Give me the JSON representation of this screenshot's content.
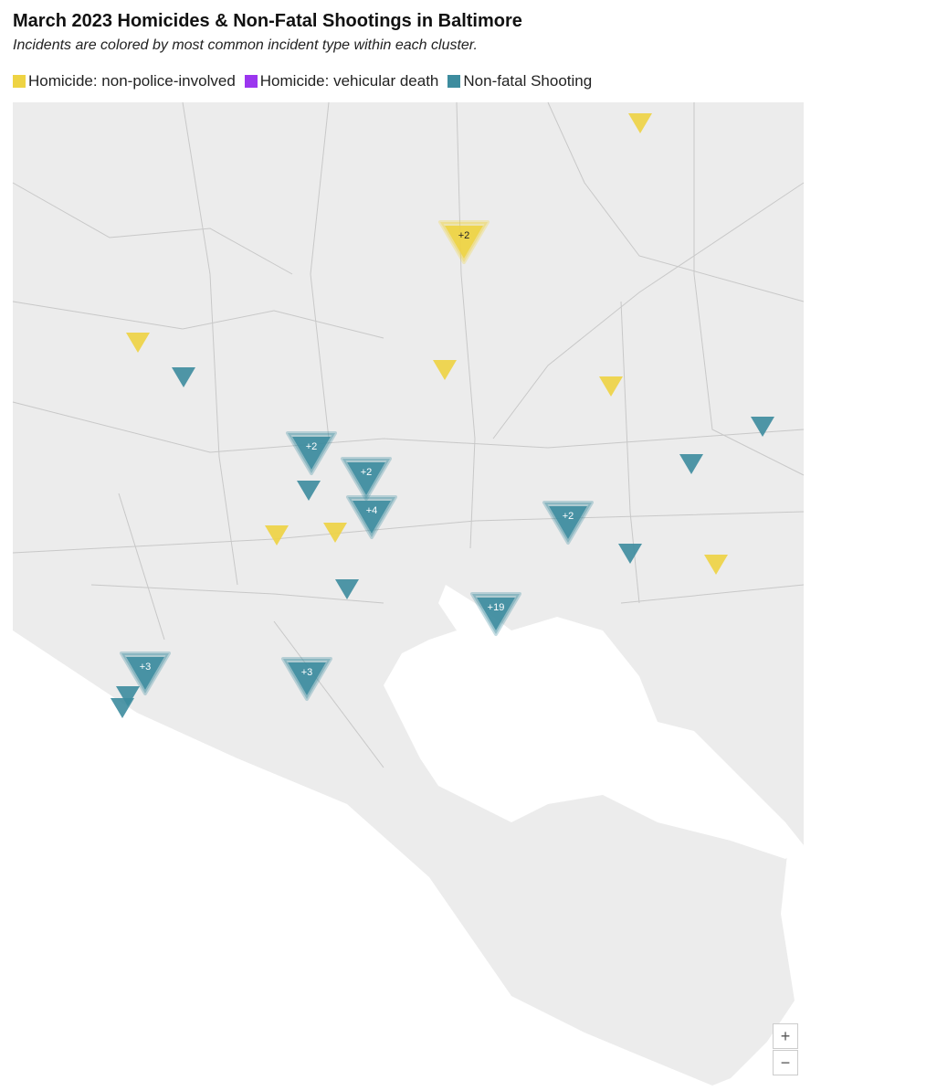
{
  "header": {
    "title": "March 2023 Homicides & Non-Fatal Shootings in Baltimore",
    "subtitle": "Incidents are colored by most common incident type within each cluster."
  },
  "legend": [
    {
      "label": "Homicide: non-police-involved",
      "color": "#eed343"
    },
    {
      "label": "Homicide: vehicular death",
      "color": "#9b36ef"
    },
    {
      "label": "Non-fatal Shooting",
      "color": "#3d8c9e"
    }
  ],
  "clusters": [
    {
      "label": "+2"
    },
    {
      "label": "+2"
    },
    {
      "label": "+2"
    },
    {
      "label": "+4"
    },
    {
      "label": "+2"
    },
    {
      "label": "+19"
    },
    {
      "label": "+3"
    },
    {
      "label": "+3"
    }
  ],
  "zoom": {
    "in": "+",
    "out": "−"
  }
}
